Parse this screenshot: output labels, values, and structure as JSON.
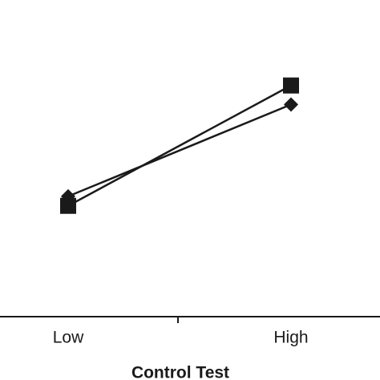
{
  "chart_data": {
    "type": "line",
    "x_label": "Control Test",
    "categories": [
      "Low",
      "High"
    ],
    "series": [
      {
        "color": "#1a1a1a",
        "marker": "square",
        "values": [
          35,
          73
        ]
      },
      {
        "color": "#1a1a1a",
        "marker": "diamond",
        "values": [
          38,
          67
        ]
      }
    ],
    "ylim": [
      0,
      100
    ]
  }
}
